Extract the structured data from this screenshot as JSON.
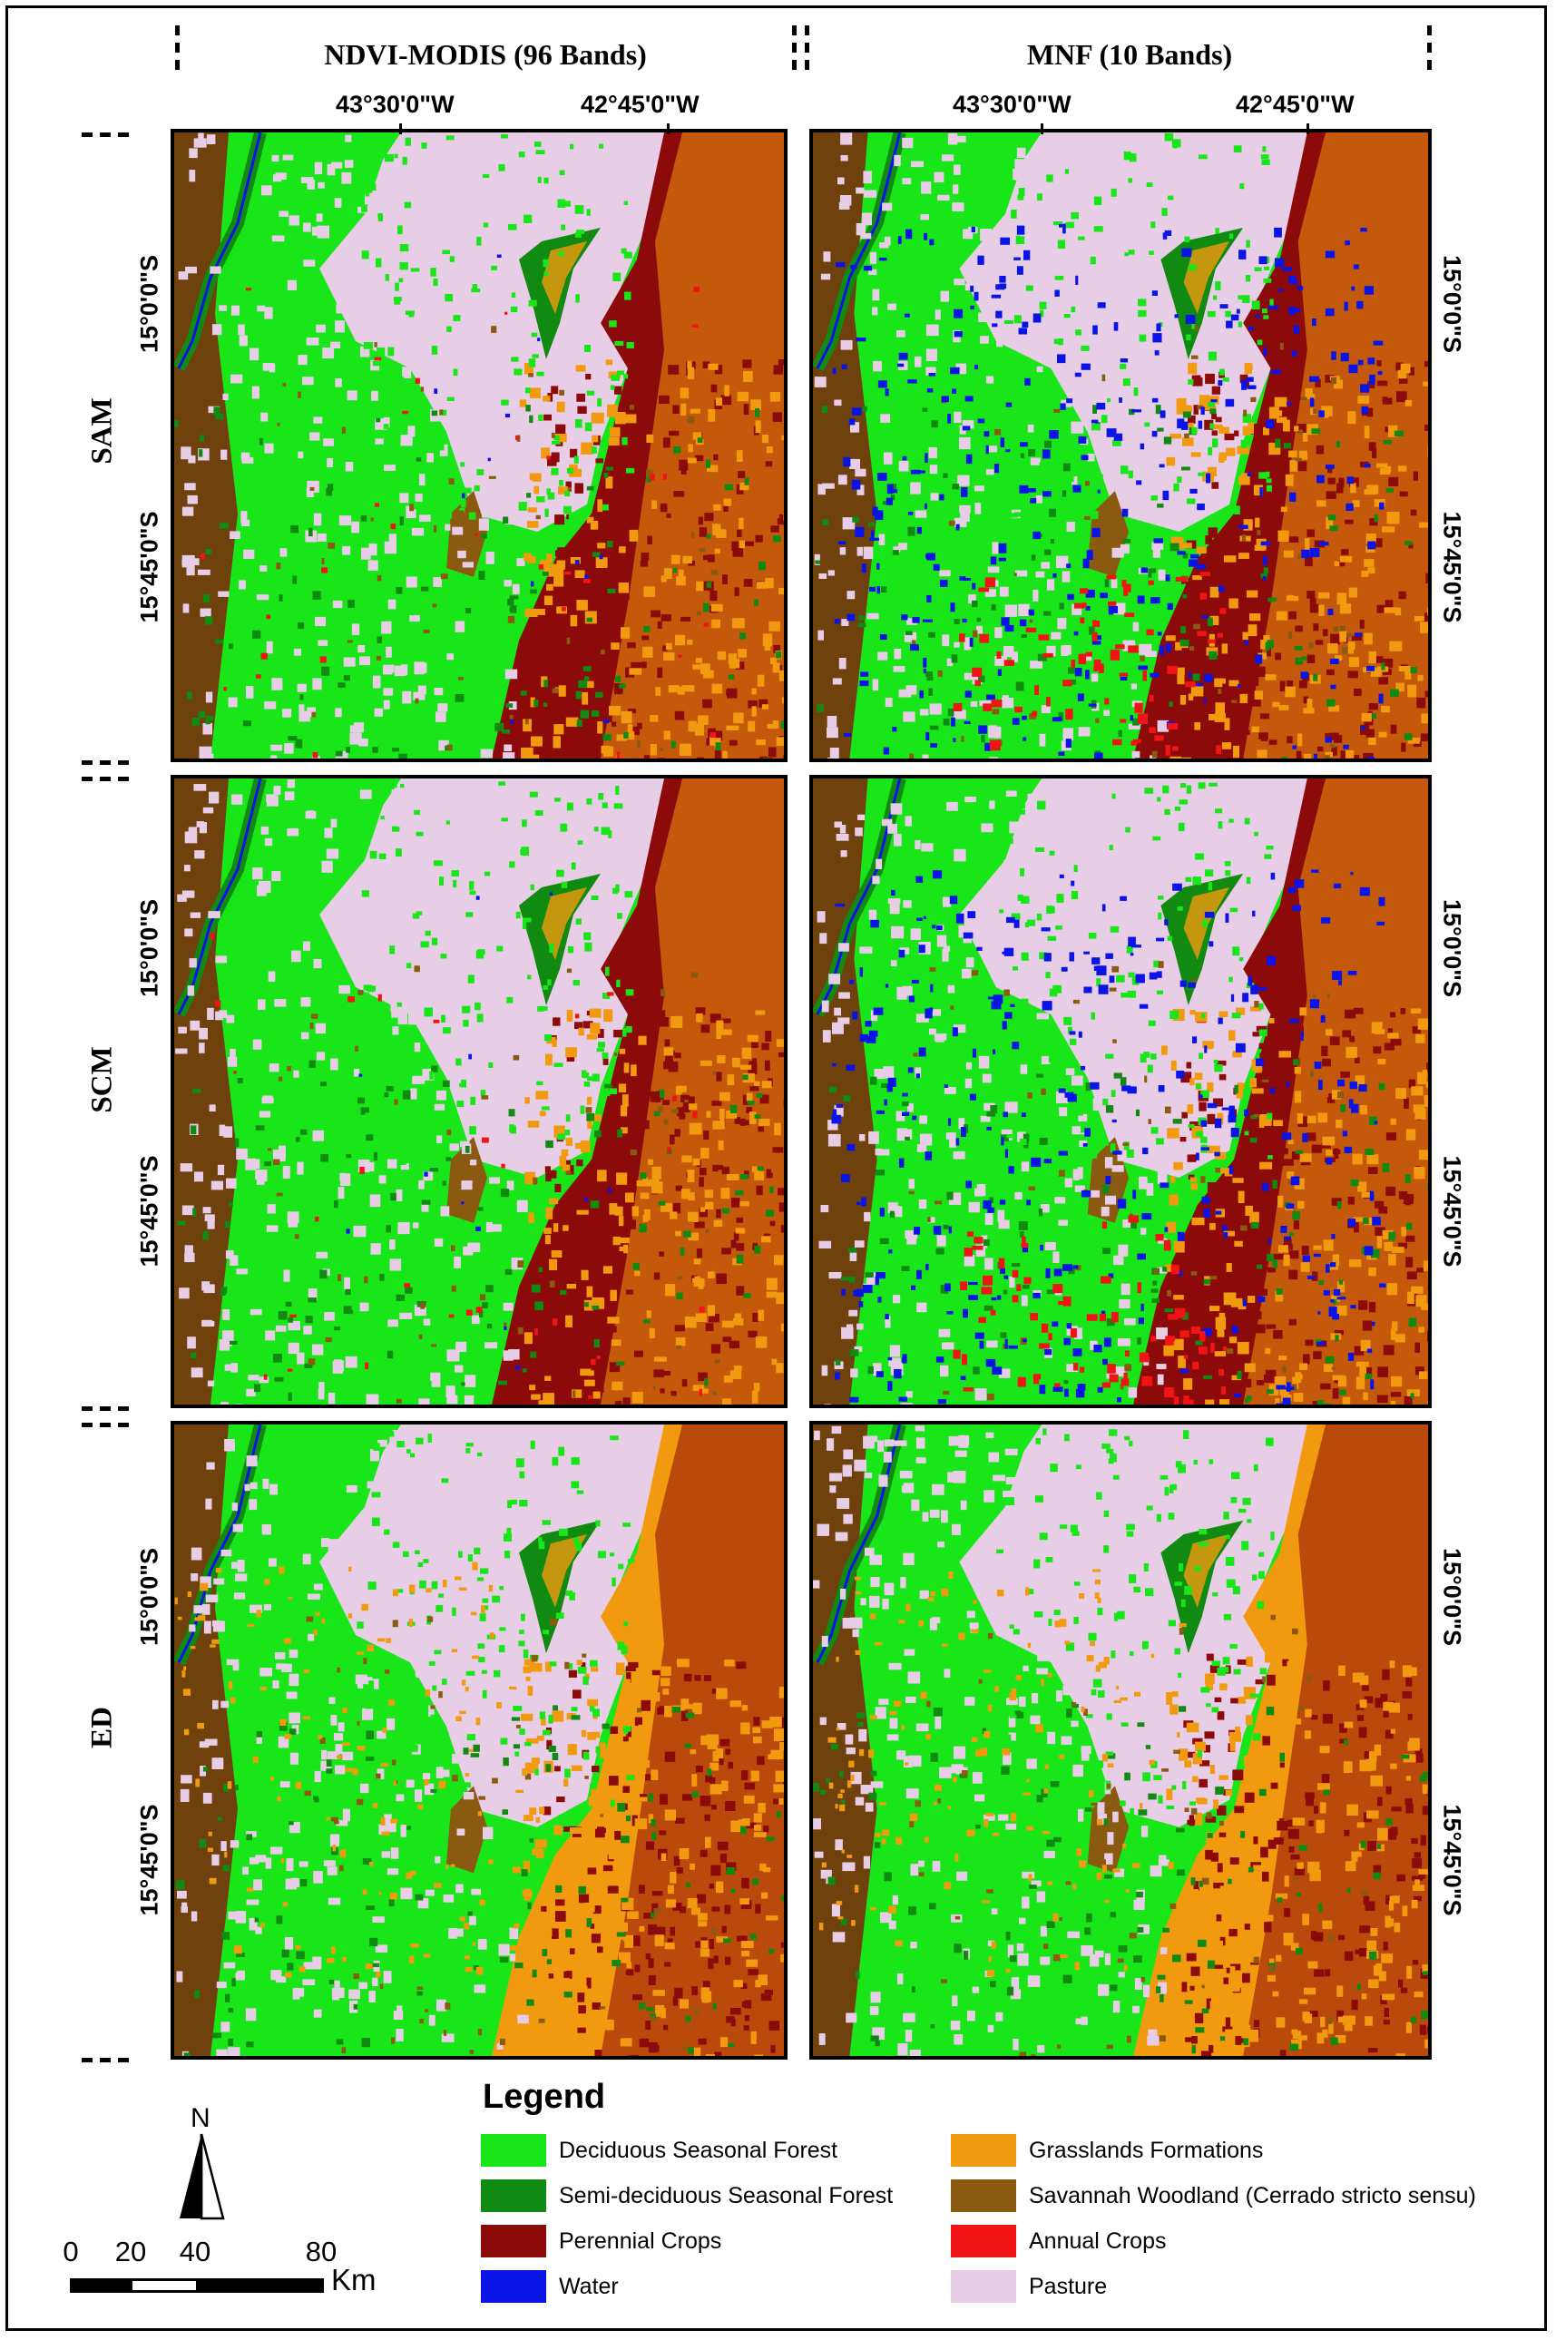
{
  "columns": [
    {
      "label": "NDVI-MODIS (96 Bands)"
    },
    {
      "label": "MNF (10 Bands)"
    }
  ],
  "longitudes": [
    "43°30'0\"W",
    "42°45'0\"W"
  ],
  "latitudes": [
    "15°0'0\"S",
    "15°45'0\"S"
  ],
  "rows": [
    {
      "label": "SAM"
    },
    {
      "label": "SCM"
    },
    {
      "label": "ED"
    }
  ],
  "legend": {
    "title": "Legend",
    "items": [
      {
        "label": "Deciduous Seasonal Forest",
        "color": "#19e619"
      },
      {
        "label": "Grasslands Formations",
        "color": "#f29a0f"
      },
      {
        "label": "Semi-deciduous Seasonal Forest",
        "color": "#118a11"
      },
      {
        "label": "Savannah Woodland (Cerrado stricto sensu)",
        "color": "#8a5a10"
      },
      {
        "label": "Perennial Crops",
        "color": "#8c0a0a"
      },
      {
        "label": "Annual Crops",
        "color": "#f01414"
      },
      {
        "label": "Water",
        "color": "#0a14e6"
      },
      {
        "label": "Pasture",
        "color": "#e8cde6"
      }
    ]
  },
  "scale_bar": {
    "labels": [
      "0",
      "20",
      "40",
      "80"
    ],
    "unit": "Km"
  },
  "north_arrow": {
    "label": "N",
    "icon": "north-arrow-icon"
  }
}
